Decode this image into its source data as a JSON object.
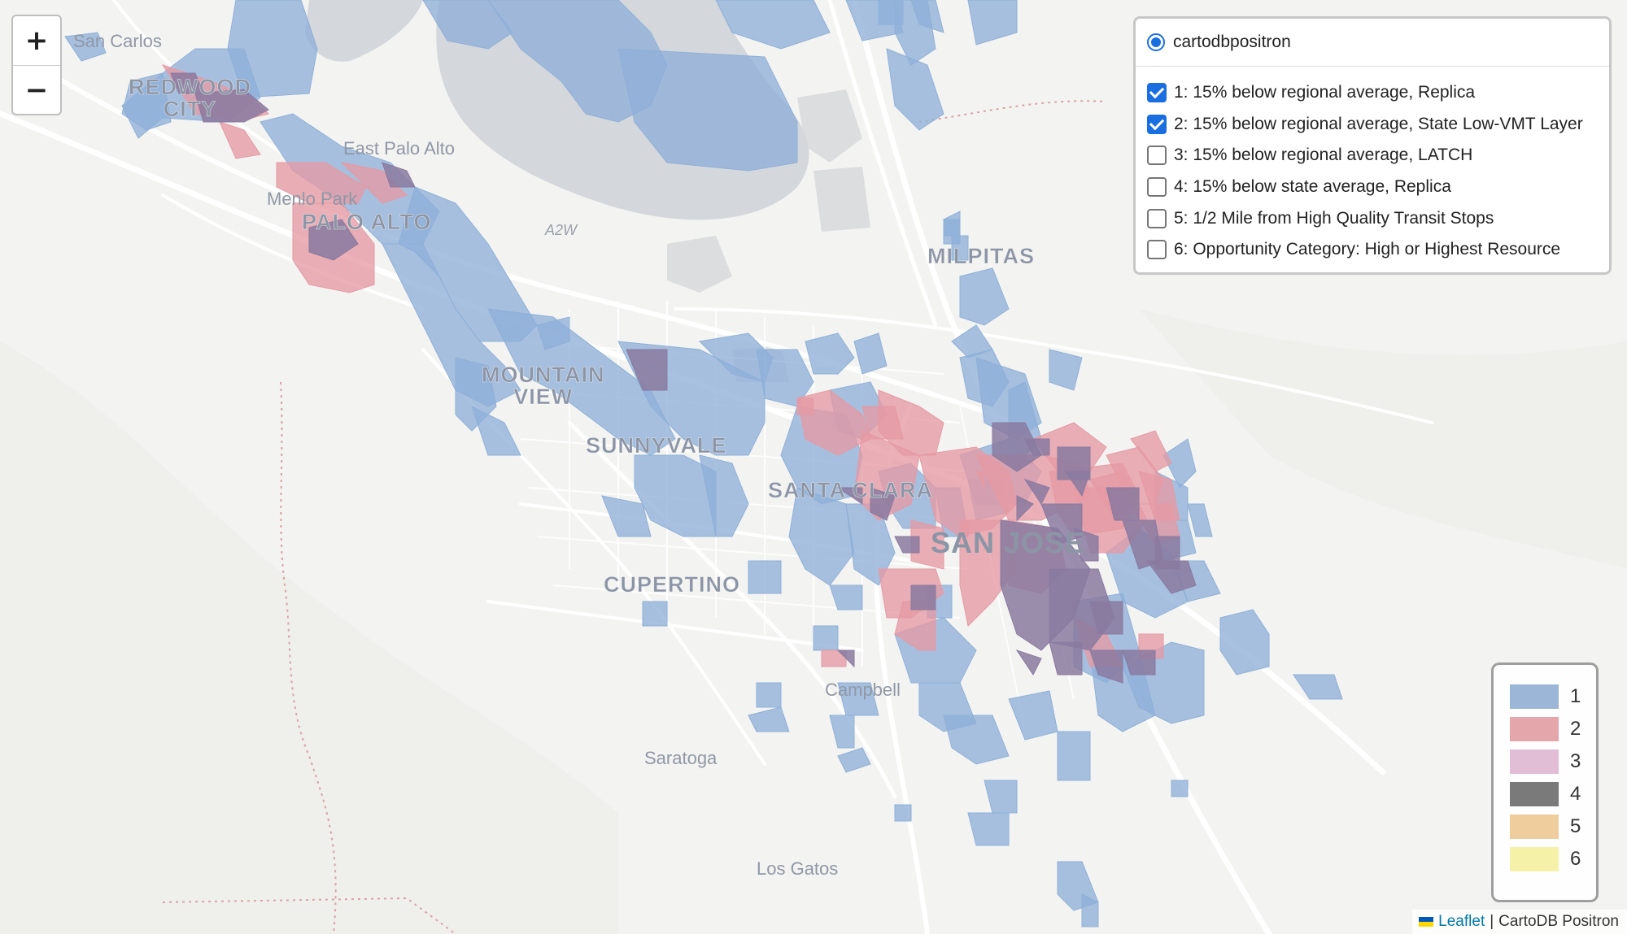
{
  "colors": {
    "land": "#f3f3f1",
    "water": "#d4d7db",
    "road": "#ffffff",
    "boundary": "#d9a3a3"
  },
  "place_labels": [
    {
      "name": "San Carlos"
    },
    {
      "name": "REDWOOD\nCITY"
    },
    {
      "name": "East Palo Alto"
    },
    {
      "name": "Menlo Park"
    },
    {
      "name": "PALO ALTO"
    },
    {
      "name": "MOUNTAIN\nVIEW"
    },
    {
      "name": "SUNNYVALE"
    },
    {
      "name": "SANTA CLARA"
    },
    {
      "name": "SAN JOSE"
    },
    {
      "name": "MILPITAS"
    },
    {
      "name": "CUPERTINO"
    },
    {
      "name": "Campbell"
    },
    {
      "name": "Saratoga"
    },
    {
      "name": "Los Gatos"
    }
  ],
  "road_labels": [
    {
      "name": "A2W"
    }
  ],
  "zoom": {
    "in_label": "+",
    "out_label": "−"
  },
  "layer_control": {
    "base_layer": {
      "label": "cartodbpositron",
      "selected": true
    },
    "overlays": [
      {
        "label": "1: 15% below regional average, Replica",
        "checked": true
      },
      {
        "label": "2: 15% below regional average, State Low-VMT Layer",
        "checked": true
      },
      {
        "label": "3: 15% below regional average, LATCH",
        "checked": false
      },
      {
        "label": "4: 15% below state average, Replica",
        "checked": false
      },
      {
        "label": "5: 1/2 Mile from High Quality Transit Stops",
        "checked": false
      },
      {
        "label": "6: Opportunity Category: High or Highest Resource",
        "checked": false
      }
    ]
  },
  "legend": [
    {
      "label": "1",
      "color": "#9bb6d6"
    },
    {
      "label": "2",
      "color": "#e4a6ab"
    },
    {
      "label": "3",
      "color": "#e2bdd6"
    },
    {
      "label": "4",
      "color": "#7a7a7a"
    },
    {
      "label": "5",
      "color": "#efcd9c"
    },
    {
      "label": "6",
      "color": "#f6f1a8"
    }
  ],
  "layer_colors": {
    "layer1": "#8fb0d8",
    "layer2": "#e59aa4",
    "overlap": "#8a7aa0"
  },
  "attribution": {
    "link": "Leaflet",
    "separator": "|",
    "text": "CartoDB Positron"
  }
}
